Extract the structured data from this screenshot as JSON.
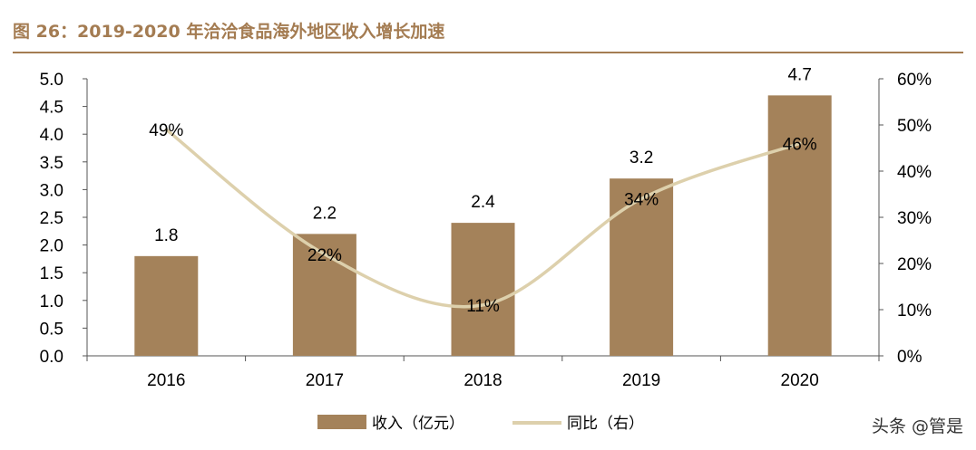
{
  "title": "图 26：2019-2020 年洽洽食品海外地区收入增长加速",
  "watermark": "头条 @管是",
  "colors": {
    "bar": "#a4825a",
    "line": "#ddd0ac",
    "title": "#a47c52",
    "axis": "#555555",
    "text": "#000000"
  },
  "chart_data": {
    "type": "bar",
    "categories": [
      "2016",
      "2017",
      "2018",
      "2019",
      "2020"
    ],
    "series": [
      {
        "name": "收入（亿元）",
        "type": "bar",
        "axis": "left",
        "values": [
          1.8,
          2.2,
          2.4,
          3.2,
          4.7
        ],
        "labels": [
          "1.8",
          "2.2",
          "2.4",
          "3.2",
          "4.7"
        ]
      },
      {
        "name": "同比（右）",
        "type": "line",
        "axis": "right",
        "values": [
          49,
          22,
          11,
          34,
          46
        ],
        "labels": [
          "49%",
          "22%",
          "11%",
          "34%",
          "46%"
        ]
      }
    ],
    "left_axis": {
      "min": 0,
      "max": 5,
      "step": 0.5,
      "ticks": [
        "0.0",
        "0.5",
        "1.0",
        "1.5",
        "2.0",
        "2.5",
        "3.0",
        "3.5",
        "4.0",
        "4.5",
        "5.0"
      ]
    },
    "right_axis": {
      "min": 0,
      "max": 60,
      "step": 10,
      "ticks": [
        "0%",
        "10%",
        "20%",
        "30%",
        "40%",
        "50%",
        "60%"
      ]
    },
    "legend": "bottom-center",
    "grid": false
  }
}
